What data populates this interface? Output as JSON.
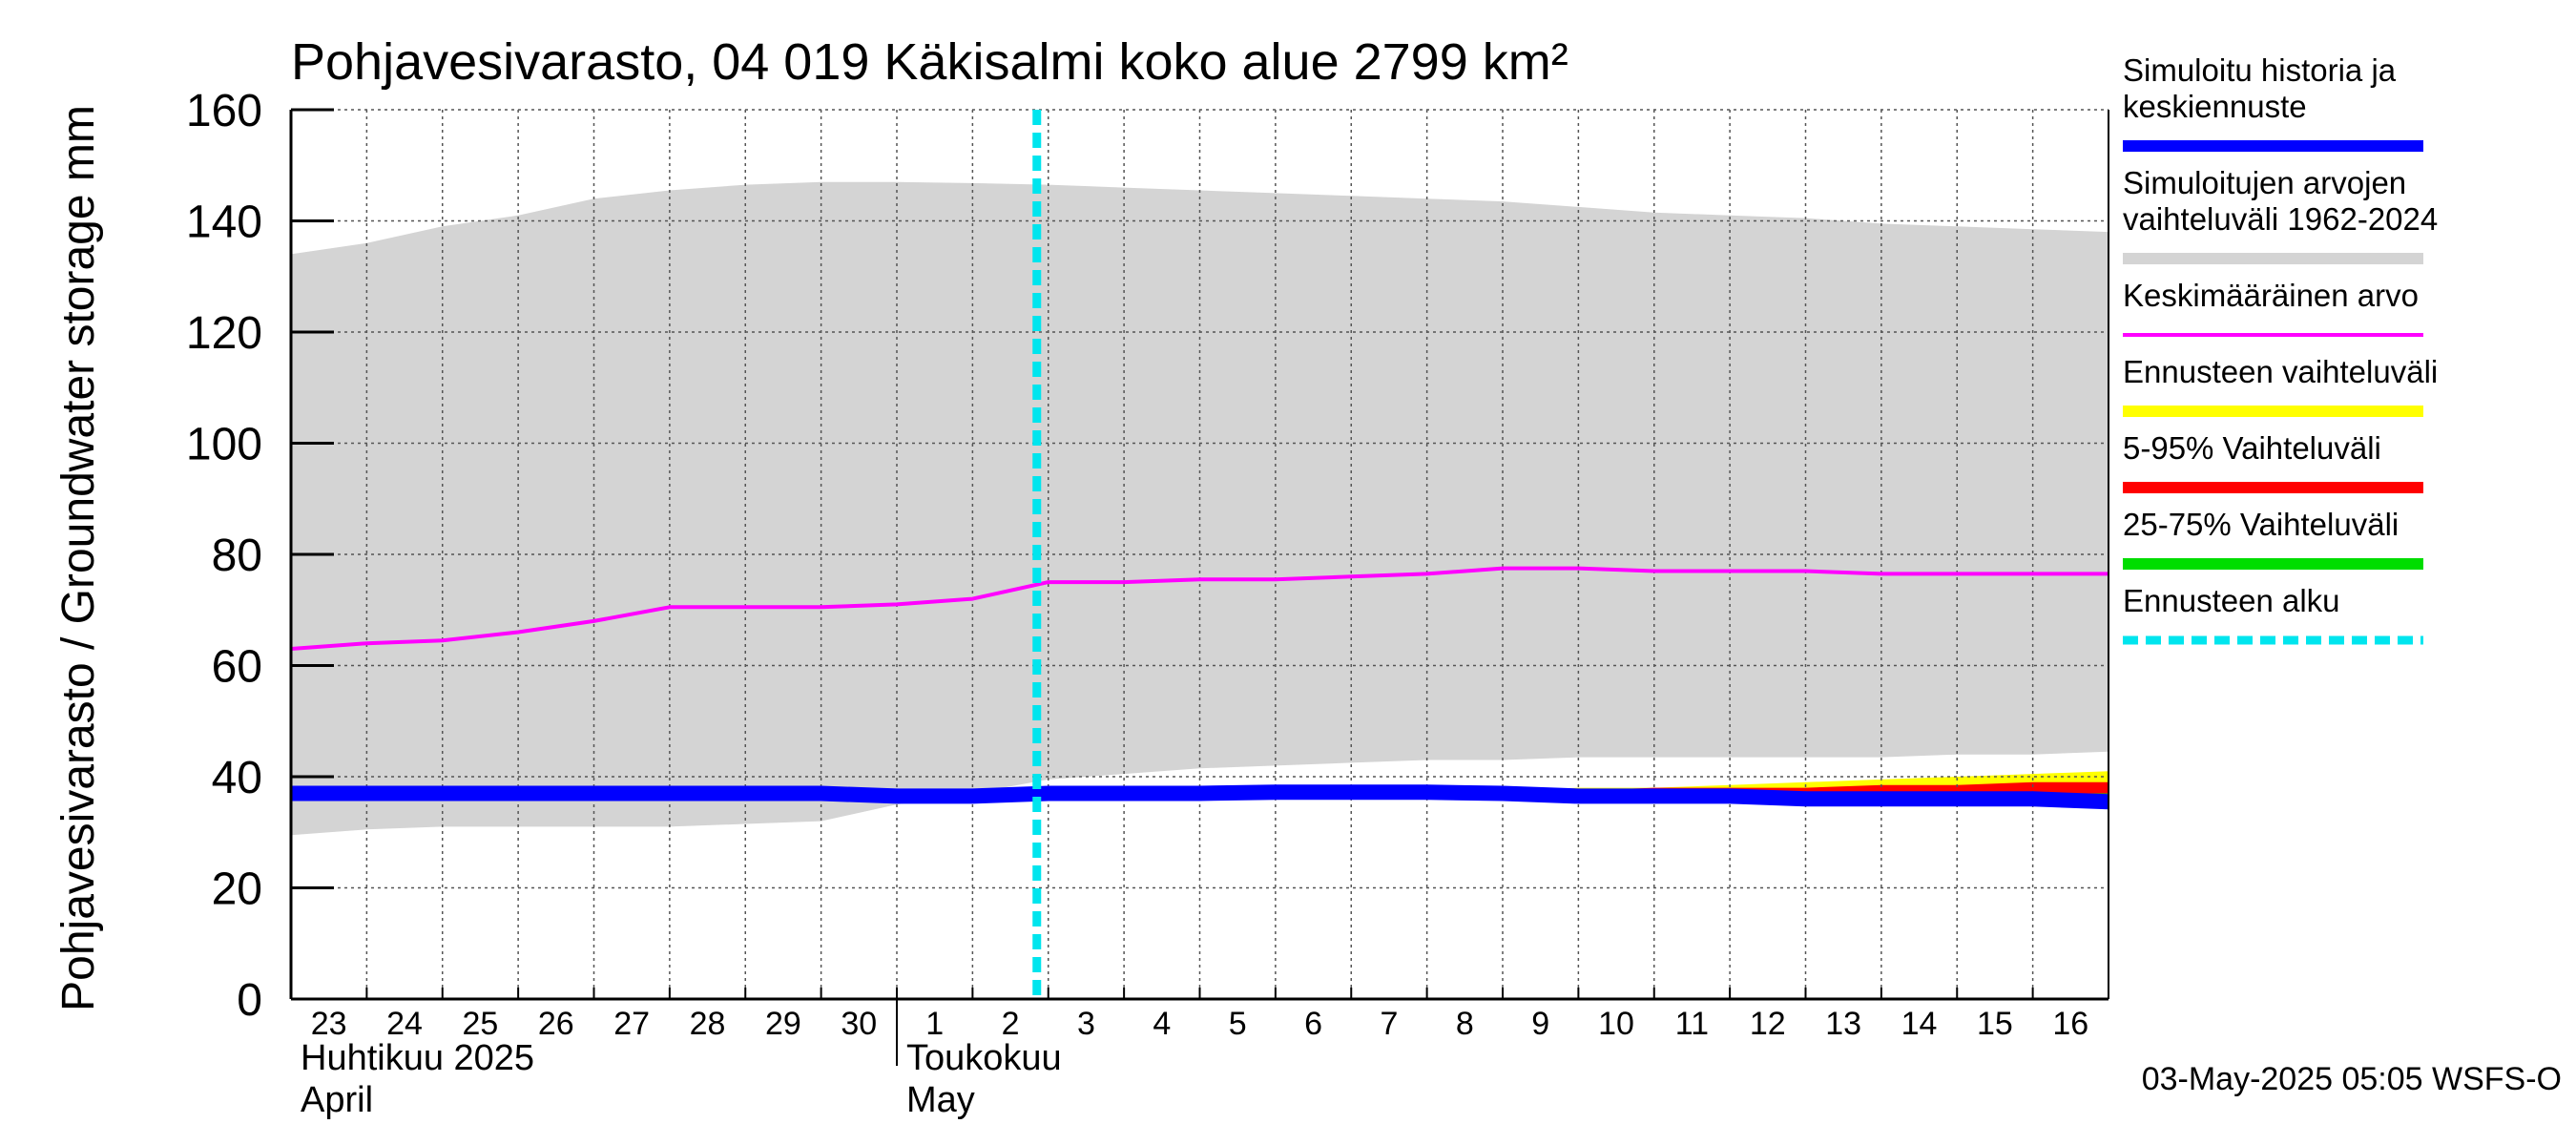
{
  "chart_data": {
    "type": "area",
    "title": "Pohjavesivarasto, 04 019 Käkisalmi koko alue 2799 km²",
    "ylabel": "Pohjavesivarasto / Groundwater storage   mm",
    "ylim": [
      0,
      160
    ],
    "yticks": [
      0,
      20,
      40,
      60,
      80,
      100,
      120,
      140,
      160
    ],
    "x_day_labels": [
      "23",
      "24",
      "25",
      "26",
      "27",
      "28",
      "29",
      "30",
      "1",
      "2",
      "3",
      "4",
      "5",
      "6",
      "7",
      "8",
      "9",
      "10",
      "11",
      "12",
      "13",
      "14",
      "15",
      "16"
    ],
    "months": [
      {
        "fi": "Huhtikuu  2025",
        "en": "April",
        "start_index": 0
      },
      {
        "fi": "Toukokuu",
        "en": "May",
        "start_index": 8
      }
    ],
    "forecast_start_index": 10,
    "series": [
      {
        "name": "Simuloitujen arvojen vaihteluväli 1962-2024",
        "color": "#d4d4d4",
        "kind": "band",
        "upper": [
          134,
          136,
          139,
          141,
          144,
          145.5,
          146.5,
          147,
          147,
          146.8,
          146.5,
          146,
          145.5,
          145,
          144.5,
          144,
          143.5,
          142.5,
          141.5,
          141,
          140.5,
          139.5,
          139,
          138.5,
          138
        ],
        "lower": [
          29.5,
          30.5,
          31,
          31,
          31,
          31,
          31.5,
          32,
          35,
          37,
          39.5,
          40.5,
          41.5,
          42,
          42.5,
          43,
          43,
          43.5,
          43.5,
          43.5,
          43.5,
          43.5,
          44,
          44,
          44.5
        ]
      },
      {
        "name": "Keskimääräinen arvo",
        "color": "#ff00ff",
        "kind": "line",
        "values": [
          63,
          64,
          64.5,
          66,
          68,
          70.5,
          70.5,
          70.5,
          71,
          72,
          75,
          75,
          75.5,
          75.5,
          76,
          76.5,
          77.5,
          77.5,
          77,
          77,
          77,
          76.5,
          76.5,
          76.5,
          76.5
        ]
      },
      {
        "name": "Ennusteen vaihteluväli",
        "color": "#ffff00",
        "kind": "band",
        "start_index": 16,
        "upper": [
          37.5,
          38,
          38,
          38.5,
          39,
          39.5,
          40,
          40.5,
          41
        ],
        "lower": [
          36.5,
          36.5,
          36,
          36,
          35.5,
          35.5,
          35.5,
          35,
          35
        ]
      },
      {
        "name": "5-95% Vaihteluväli",
        "color": "#ff0000",
        "kind": "band",
        "start_index": 16,
        "upper": [
          37.5,
          37.5,
          38,
          38,
          38,
          38.5,
          38.5,
          39,
          39
        ],
        "lower": [
          36.5,
          36.5,
          36,
          36,
          35.5,
          35.5,
          35.5,
          35,
          35
        ]
      },
      {
        "name": "25-75% Vaihteluväli",
        "color": "#00dd00",
        "kind": "band",
        "start_index": 16,
        "upper": [
          37,
          37,
          37,
          37,
          37,
          37,
          37,
          37,
          37
        ],
        "lower": [
          36.5,
          36.5,
          36.5,
          36.5,
          36,
          36,
          36,
          36,
          36
        ]
      },
      {
        "name": "Simuloitu historia ja keskiennuste",
        "color": "#0000ff",
        "kind": "line",
        "values": [
          37,
          37,
          37,
          37,
          37,
          37,
          37,
          37,
          36.5,
          36.5,
          37,
          37,
          37,
          37.2,
          37.2,
          37.2,
          37,
          36.5,
          36.5,
          36.5,
          36,
          36,
          36,
          36,
          35.5
        ]
      }
    ],
    "legend": [
      {
        "label": "Simuloitu historia ja keskiennuste",
        "color": "#0000ff",
        "style": "thick"
      },
      {
        "label": "Simuloitujen arvojen vaihteluväli 1962-2024",
        "color": "#d4d4d4",
        "style": "thick"
      },
      {
        "label": "Keskimääräinen arvo",
        "color": "#ff00ff",
        "style": "thin"
      },
      {
        "label": "Ennusteen vaihteluväli",
        "color": "#ffff00",
        "style": "thick"
      },
      {
        "label": "5-95% Vaihteluväli",
        "color": "#ff0000",
        "style": "thick"
      },
      {
        "label": "25-75% Vaihteluväli",
        "color": "#00dd00",
        "style": "thick"
      },
      {
        "label": "Ennusteen alku",
        "color": "#00e5ee",
        "style": "dashed"
      }
    ],
    "footer": "03-May-2025 05:05 WSFS-O"
  }
}
